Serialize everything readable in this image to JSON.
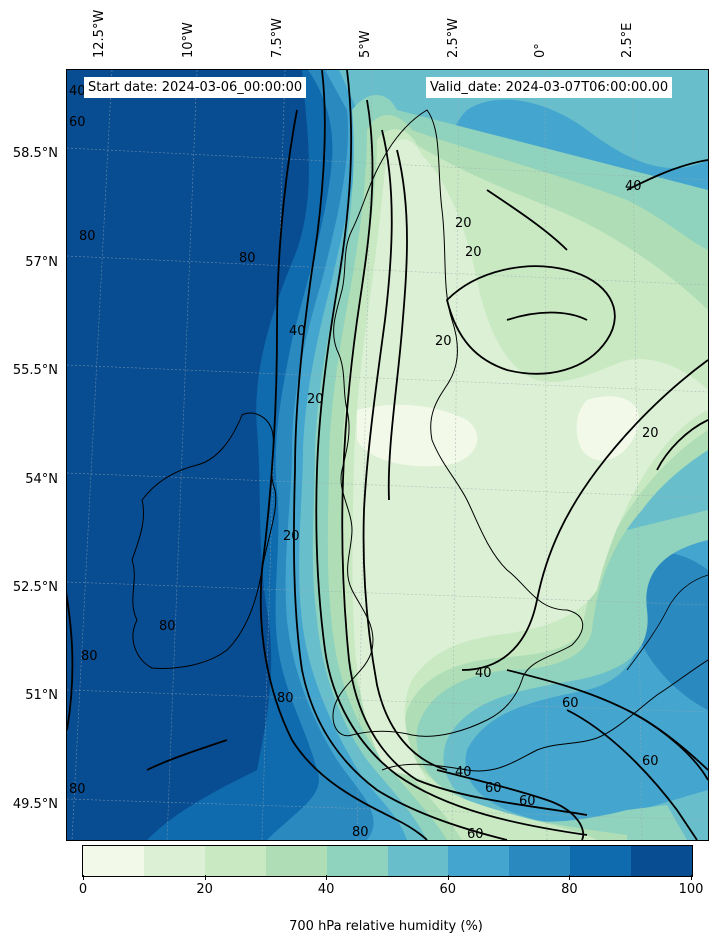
{
  "header": {
    "start_date": "Start date: 2024-03-06_00:00:00",
    "valid_date": "Valid_date: 2024-03-07T06:00:00.00"
  },
  "map": {
    "variable": "700 hPa relative humidity",
    "longitude_labels": [
      "12.5°W",
      "10°W",
      "7.5°W",
      "5°W",
      "2.5°W",
      "0°",
      "2.5°E"
    ],
    "latitude_labels": [
      "58.5°N",
      "57°N",
      "55.5°N",
      "54°N",
      "52.5°N",
      "51°N",
      "49.5°N"
    ],
    "contour_labels": [
      "40",
      "60",
      "80",
      "80",
      "80",
      "40",
      "20",
      "20",
      "20",
      "40",
      "20",
      "20",
      "20",
      "40",
      "60",
      "60",
      "40",
      "60",
      "60",
      "80",
      "80",
      "80",
      "80",
      "60"
    ]
  },
  "colorbar": {
    "label": "700 hPa relative humidity (%)",
    "ticks": [
      "0",
      "20",
      "40",
      "60",
      "80",
      "100"
    ],
    "tick_values": [
      0,
      20,
      40,
      60,
      80,
      100
    ],
    "range": [
      0,
      100
    ],
    "colors": [
      "#f2f9e9",
      "#dbf0d4",
      "#c9e9c3",
      "#afdeb6",
      "#8fd2bd",
      "#68bfcb",
      "#44a5cf",
      "#2a89bf",
      "#0f6bae",
      "#084d92"
    ]
  }
}
